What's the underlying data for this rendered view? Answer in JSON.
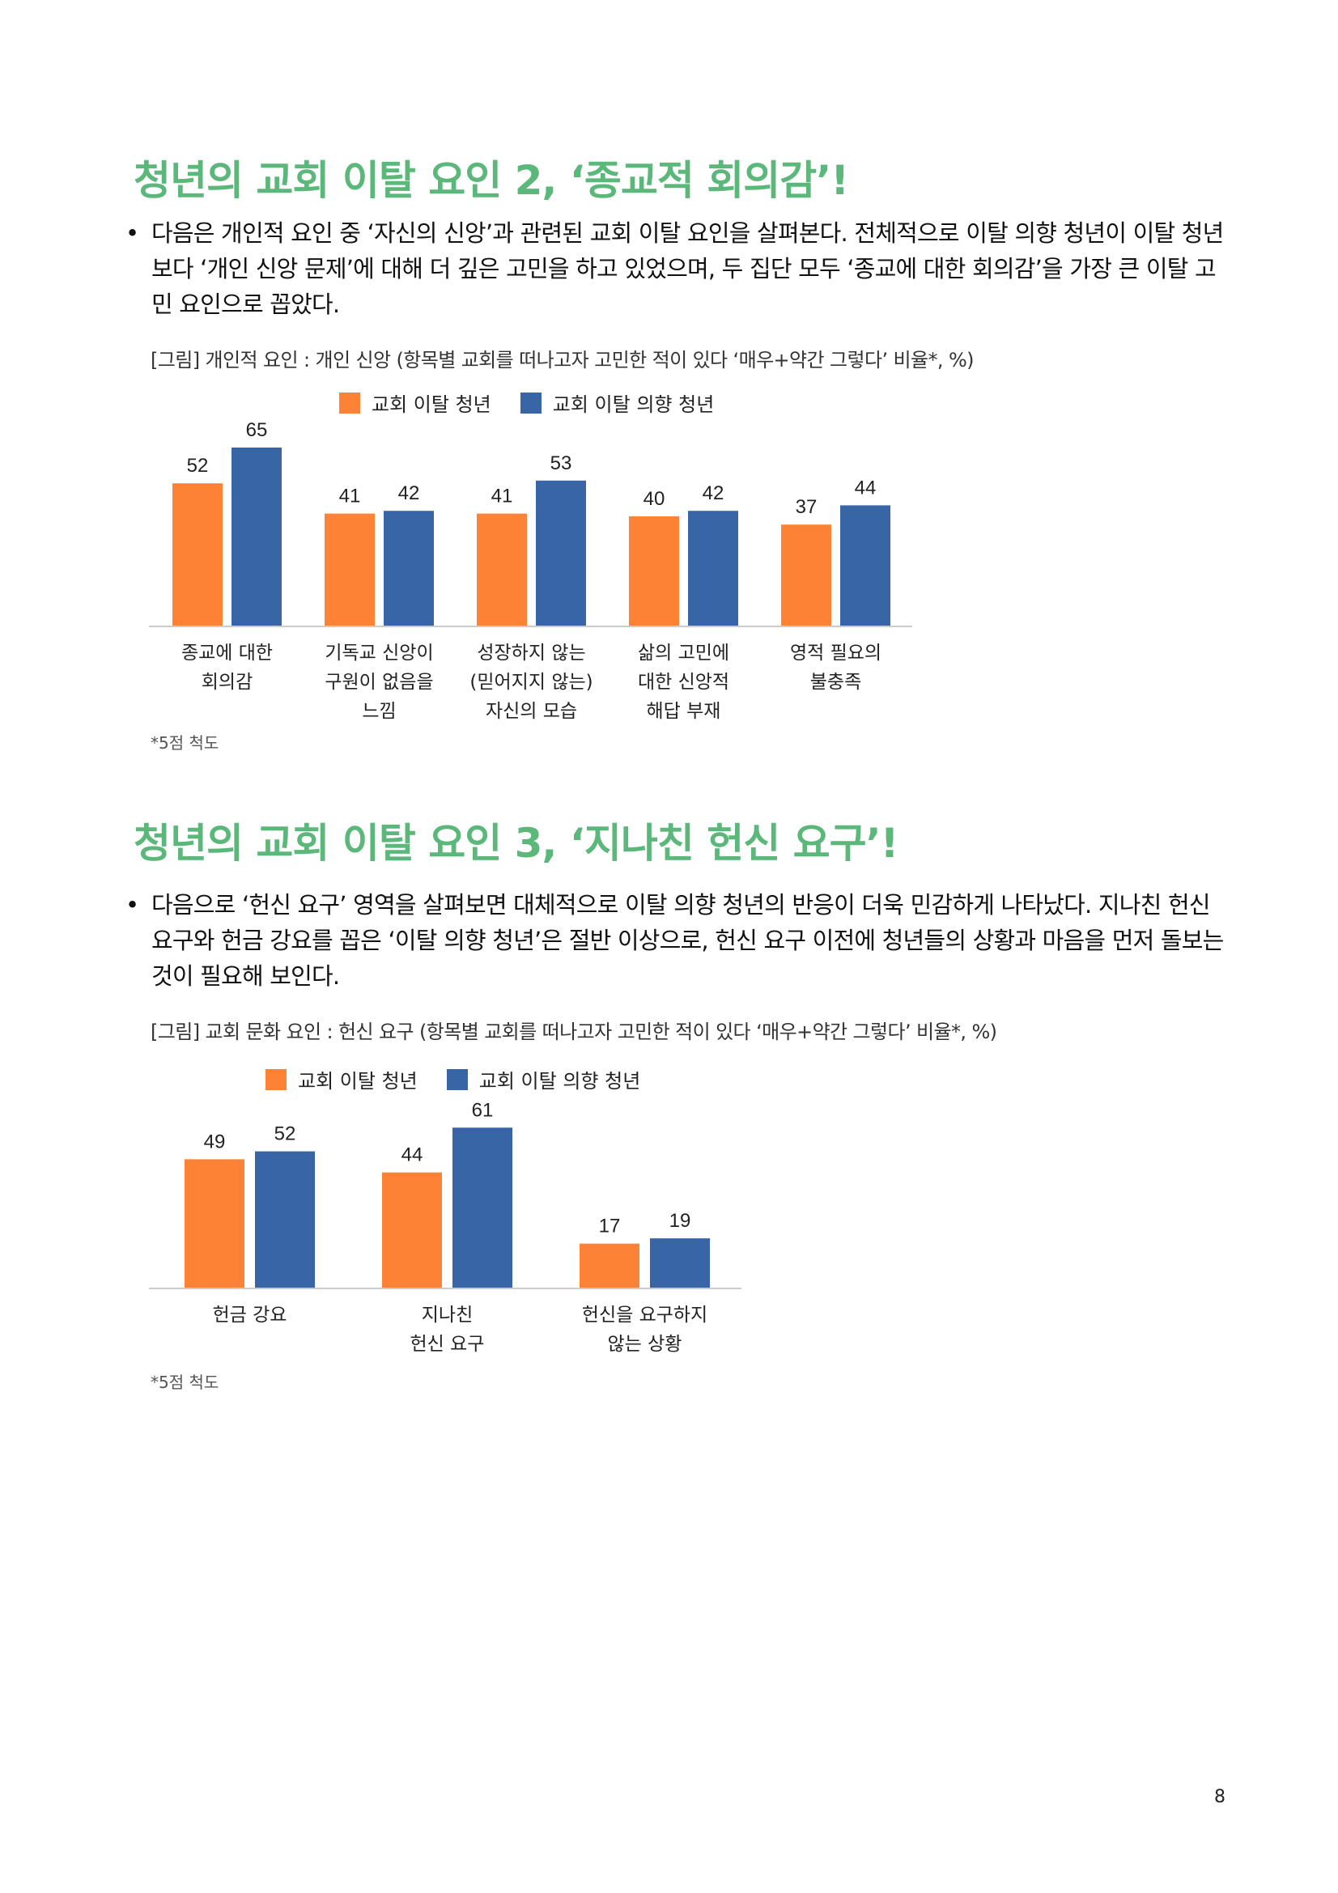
{
  "section2": {
    "title": "청년의 교회 이탈 요인 2, ‘종교적 회의감’!",
    "bullet": "다음은 개인적 요인 중 ‘자신의 신앙’과 관련된 교회 이탈 요인을 살펴본다. 전체적으로 이탈 의향 청년이 이탈 청년보다 ‘개인 신앙 문제’에 대해 더 깊은 고민을 하고 있었으며, 두 집단 모두 ‘종교에 대한 회의감’을 가장 큰 이탈 고민 요인으로 꼽았다.",
    "caption": "[그림] 개인적 요인 : 개인 신앙 (항목별 교회를 떠나고자 고민한 적이 있다 ‘매우+약간 그렇다’ 비율*, %)",
    "note": "*5점 척도"
  },
  "section3": {
    "title": "청년의 교회 이탈 요인 3, ‘지나친 헌신 요구’!",
    "bullet": "다음으로 ‘헌신 요구’ 영역을 살펴보면 대체적으로 이탈 의향 청년의 반응이 더욱 민감하게 나타났다. 지나친 헌신 요구와 헌금 강요를 꼽은 ‘이탈 의향 청년’은 절반 이상으로, 헌신 요구 이전에 청년들의 상황과 마음을 먼저 돌보는 것이 필요해 보인다.",
    "caption": "[그림] 교회 문화 요인 : 헌신 요구 (항목별 교회를 떠나고자 고민한 적이 있다 ‘매우+약간 그렇다’ 비율*, %)",
    "note": "*5점 척도"
  },
  "bullet_symbol": "•",
  "colors": {
    "title_green": "#5bb87a",
    "orange": "#fe8235",
    "blue": "#3765a6"
  },
  "chart_data": [
    {
      "type": "bar",
      "categories": [
        [
          "종교에 대한",
          "회의감"
        ],
        [
          "기독교 신앙이",
          "구원이 없음을",
          "느낌"
        ],
        [
          "성장하지 않는",
          "(믿어지지 않는)",
          "자신의 모습"
        ],
        [
          "삶의 고민에",
          "대한 신앙적",
          "해답 부재"
        ],
        [
          "영적 필요의",
          "불충족"
        ]
      ],
      "series": [
        {
          "name": "교회 이탈 청년",
          "values": [
            52,
            41,
            41,
            40,
            37
          ]
        },
        {
          "name": "교회 이탈 의향 청년",
          "values": [
            65,
            42,
            53,
            42,
            44
          ]
        }
      ],
      "legend_position": "top",
      "grid": false,
      "ylim": [
        0,
        70
      ]
    },
    {
      "type": "bar",
      "categories": [
        [
          "헌금 강요"
        ],
        [
          "지나친",
          "헌신 요구"
        ],
        [
          "헌신을 요구하지",
          "않는 상황"
        ]
      ],
      "series": [
        {
          "name": "교회 이탈 청년",
          "values": [
            49,
            44,
            17
          ]
        },
        {
          "name": "교회 이탈 의향 청년",
          "values": [
            52,
            61,
            19
          ]
        }
      ],
      "legend_position": "top",
      "grid": false,
      "ylim": [
        0,
        70
      ]
    }
  ],
  "page_number": "8"
}
